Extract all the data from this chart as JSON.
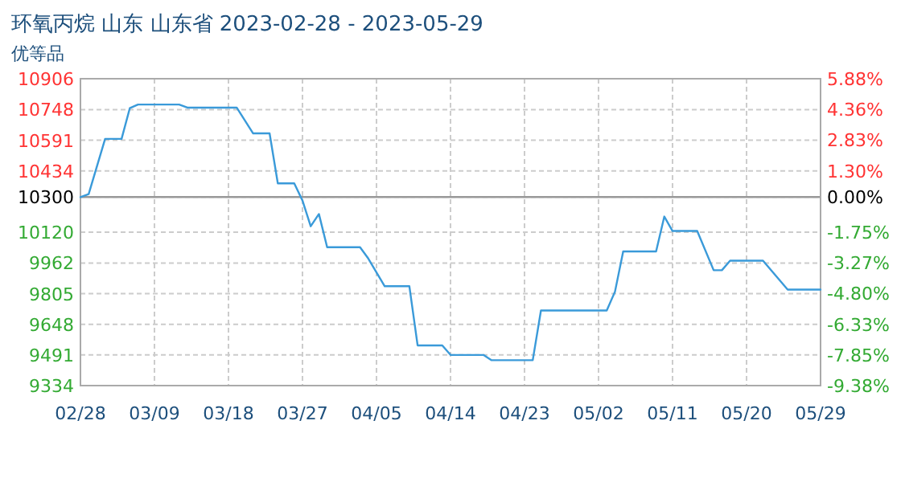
{
  "chart_data": {
    "type": "line",
    "title": "环氧丙烷 山东 山东省 2023-02-28 - 2023-05-29",
    "subtitle": "优等品",
    "x": [
      "2023-02-28",
      "2023-03-01",
      "2023-03-03",
      "2023-03-05",
      "2023-03-06",
      "2023-03-07",
      "2023-03-12",
      "2023-03-13",
      "2023-03-19",
      "2023-03-21",
      "2023-03-23",
      "2023-03-24",
      "2023-03-26",
      "2023-03-27",
      "2023-03-28",
      "2023-03-29",
      "2023-03-30",
      "2023-04-03",
      "2023-04-04",
      "2023-04-06",
      "2023-04-09",
      "2023-04-10",
      "2023-04-13",
      "2023-04-14",
      "2023-04-18",
      "2023-04-19",
      "2023-04-24",
      "2023-04-25",
      "2023-05-03",
      "2023-05-04",
      "2023-05-05",
      "2023-05-09",
      "2023-05-10",
      "2023-05-11",
      "2023-05-14",
      "2023-05-16",
      "2023-05-17",
      "2023-05-18",
      "2023-05-22",
      "2023-05-25",
      "2023-05-29"
    ],
    "series": [
      {
        "color": "#3a9ad9",
        "values": [
          10300,
          10315,
          10598,
          10598,
          10755,
          10774,
          10774,
          10758,
          10758,
          10626,
          10626,
          10370,
          10370,
          10282,
          10150,
          10213,
          10043,
          10043,
          9985,
          9843,
          9843,
          9540,
          9540,
          9491,
          9491,
          9464,
          9464,
          9719,
          9719,
          9815,
          10021,
          10021,
          10200,
          10126,
          10126,
          9925,
          9925,
          9974,
          9974,
          9826,
          9826
        ]
      }
    ],
    "xlim": [
      "2023-02-28",
      "2023-05-29"
    ],
    "xticks": [
      {
        "value": "2023-02-28",
        "label": "02/28"
      },
      {
        "value": "2023-03-09",
        "label": "03/09"
      },
      {
        "value": "2023-03-18",
        "label": "03/18"
      },
      {
        "value": "2023-03-27",
        "label": "03/27"
      },
      {
        "value": "2023-04-05",
        "label": "04/05"
      },
      {
        "value": "2023-04-14",
        "label": "04/14"
      },
      {
        "value": "2023-04-23",
        "label": "04/23"
      },
      {
        "value": "2023-05-02",
        "label": "05/02"
      },
      {
        "value": "2023-05-11",
        "label": "05/11"
      },
      {
        "value": "2023-05-20",
        "label": "05/20"
      },
      {
        "value": "2023-05-29",
        "label": "05/29"
      }
    ],
    "ylim": [
      9334,
      10906
    ],
    "yticks": [
      9334,
      9491,
      9648,
      9805,
      9962,
      10120,
      10300,
      10434,
      10591,
      10748,
      10906
    ],
    "y2lim": [
      -9.38,
      5.88
    ],
    "y2ticks": [
      {
        "value": -9.38,
        "label": "-9.38%"
      },
      {
        "value": -7.85,
        "label": "-7.85%"
      },
      {
        "value": -6.33,
        "label": "-6.33%"
      },
      {
        "value": -4.8,
        "label": "-4.80%"
      },
      {
        "value": -3.27,
        "label": "-3.27%"
      },
      {
        "value": -1.75,
        "label": "-1.75%"
      },
      {
        "value": 0,
        "label": "0.00%"
      },
      {
        "value": 1.3,
        "label": "1.30%"
      },
      {
        "value": 2.83,
        "label": "2.83%"
      },
      {
        "value": 4.36,
        "label": "4.36%"
      },
      {
        "value": 5.88,
        "label": "5.88%"
      }
    ],
    "grid": true,
    "ref_lines": [
      {
        "axis": "y",
        "value": 10300,
        "color": "#999999"
      }
    ]
  }
}
